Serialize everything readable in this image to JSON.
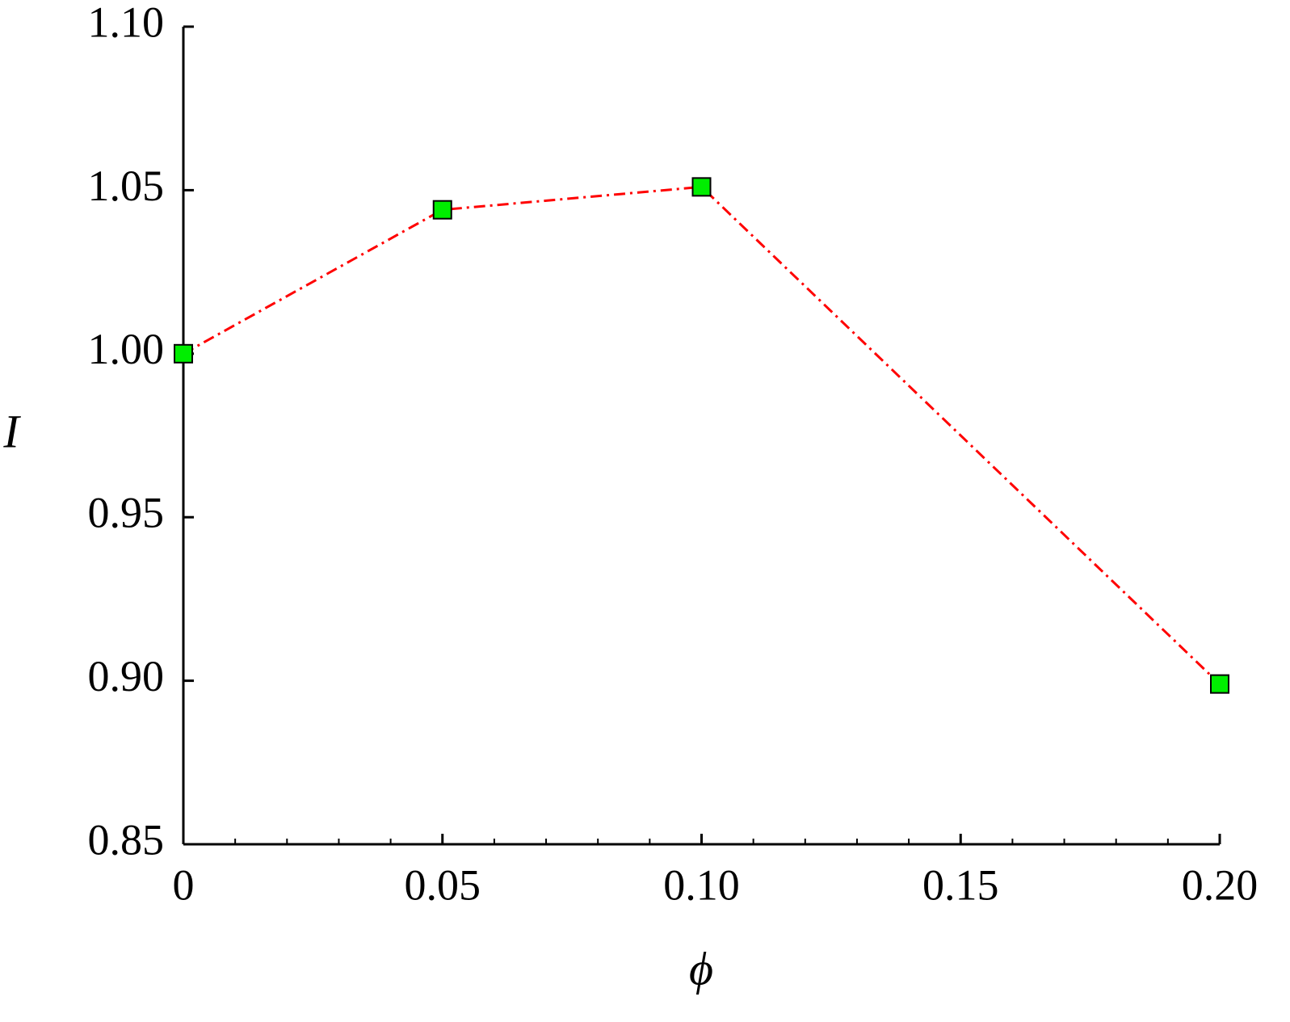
{
  "chart_data": {
    "type": "line",
    "x_label": "ϕ",
    "y_label": "I",
    "x": [
      0,
      0.05,
      0.1,
      0.2
    ],
    "series": [
      {
        "values": [
          1.0,
          1.044,
          1.051,
          0.899
        ],
        "color": "#ff0000",
        "marker_color": "#00ee00"
      }
    ],
    "xlim": [
      0,
      0.2
    ],
    "ylim": [
      0.85,
      1.1
    ],
    "xticks": [
      0,
      0.05,
      {
        "value": 0.1,
        "label": "0.10"
      },
      {
        "value": 0.15,
        "label": "0.15"
      },
      {
        "value": 0.2,
        "label": "0.20"
      }
    ],
    "xminorticks": [
      0.01,
      0.02,
      0.03,
      0.04,
      0.06,
      0.07,
      0.08,
      0.09,
      0.11,
      0.12,
      0.13,
      0.14,
      0.16,
      0.17,
      0.18,
      0.19
    ],
    "yticks": [
      {
        "value": 0.85,
        "label": "0.85"
      },
      {
        "value": 0.9,
        "label": "0.90"
      },
      {
        "value": 0.95,
        "label": "0.95"
      },
      {
        "value": 1.0,
        "label": "1.00"
      },
      {
        "value": 1.05,
        "label": "1.05"
      },
      {
        "value": 1.1,
        "label": "1.10"
      }
    ],
    "grid": false
  }
}
